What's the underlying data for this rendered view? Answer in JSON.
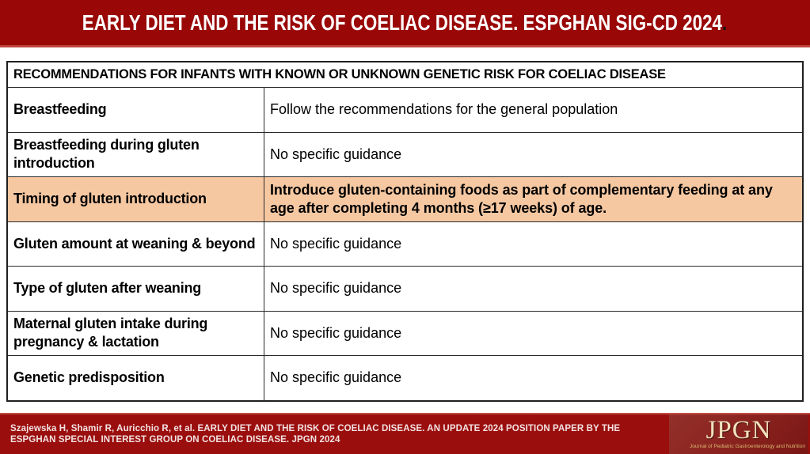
{
  "header": {
    "title": "EARLY DIET AND THE RISK OF COELIAC DISEASE. ESPGHAN SIG-CD 2024",
    "title_period": ".",
    "bg_color": "#990707",
    "text_color": "#ffffff"
  },
  "table": {
    "header": "RECOMMENDATIONS FOR INFANTS WITH KNOWN OR UNKNOWN GENETIC RISK FOR COELIAC DISEASE",
    "highlight_color": "#f6c8a2",
    "rows": [
      {
        "topic": "Breastfeeding",
        "guidance": "Follow the recommendations for the general population",
        "highlighted": false
      },
      {
        "topic": "Breastfeeding during gluten introduction",
        "guidance": "No specific guidance",
        "highlighted": false
      },
      {
        "topic": "Timing of gluten introduction",
        "guidance": "Introduce gluten-containing foods as part of complementary feeding at any age after completing 4 months (≥17 weeks) of age.",
        "highlighted": true
      },
      {
        "topic": "Gluten amount at weaning & beyond",
        "guidance": "No specific guidance",
        "highlighted": false
      },
      {
        "topic": "Type of gluten after weaning",
        "guidance": "No specific guidance",
        "highlighted": false
      },
      {
        "topic": "Maternal gluten intake during pregnancy & lactation",
        "guidance": "No specific guidance",
        "highlighted": false
      },
      {
        "topic": "Genetic predisposition",
        "guidance": "No specific guidance",
        "highlighted": false
      }
    ]
  },
  "footer": {
    "citation_line1": "Szajewska H, Shamir R, Auricchio R, et al. EARLY DIET AND THE RISK OF COELIAC DISEASE. AN UPDATE 2024 POSITION PAPER BY THE",
    "citation_line2": "ESPGHAN SPECIAL INTEREST GROUP ON COELIAC DISEASE. JPGN 2024",
    "bg_color": "#9b0e0e",
    "logo": {
      "name": "JPGN",
      "tagline": "Journal of Pediatric Gastroenterology and Nutrition"
    }
  }
}
